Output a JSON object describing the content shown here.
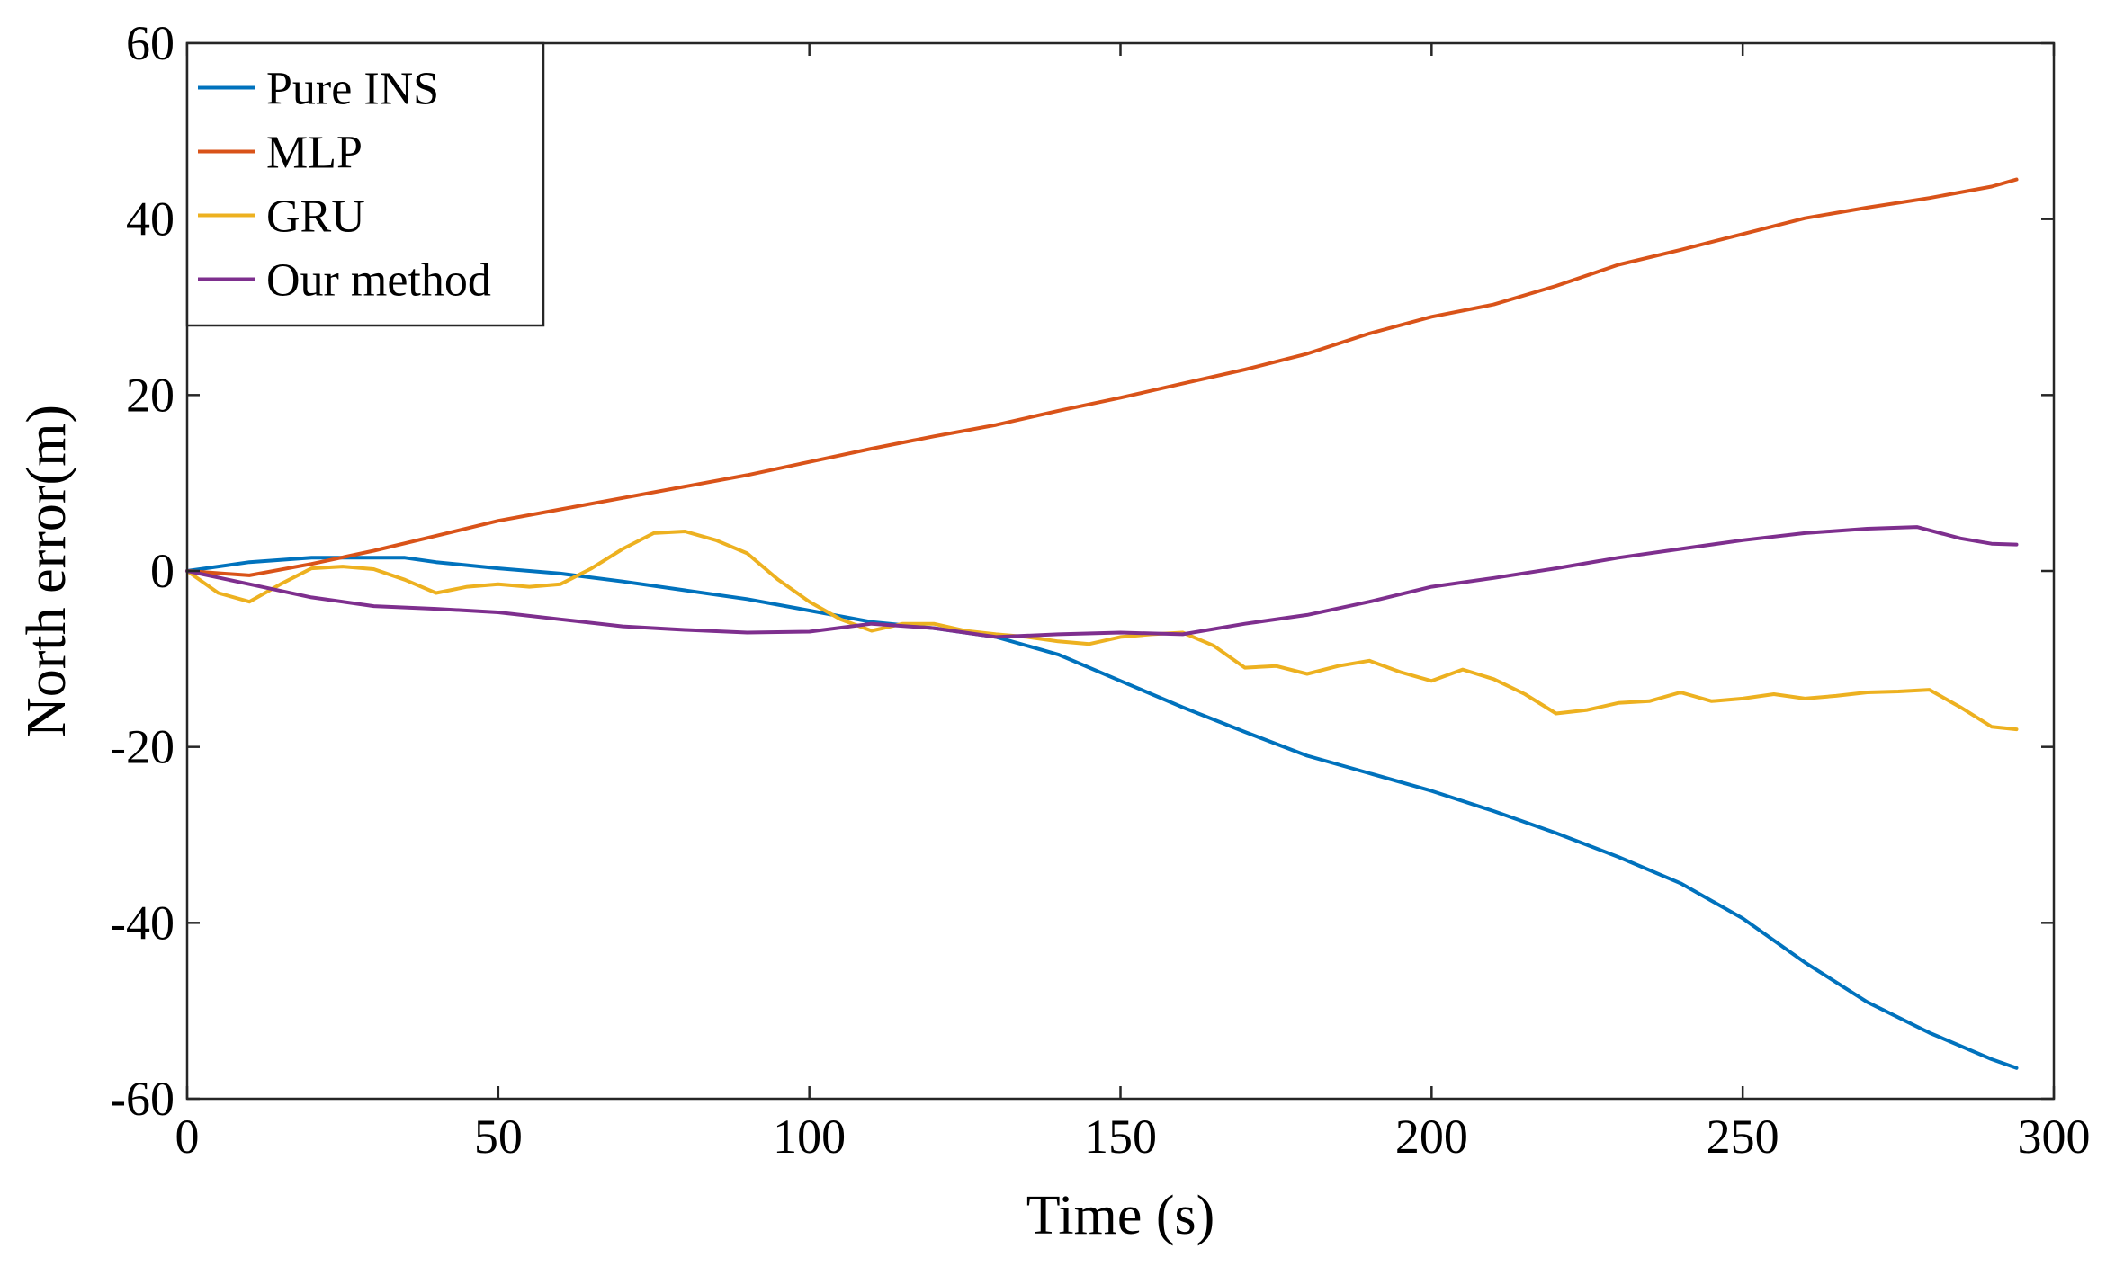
{
  "chart_data": {
    "type": "line",
    "title": "",
    "xlabel": "Time (s)",
    "ylabel": "North error(m)",
    "xlim": [
      0,
      300
    ],
    "ylim": [
      -60,
      60
    ],
    "xticks": [
      0,
      50,
      100,
      150,
      200,
      250,
      300
    ],
    "yticks": [
      -60,
      -40,
      -20,
      0,
      20,
      40,
      60
    ],
    "grid": false,
    "legend_position": "top-left",
    "series": [
      {
        "name": "Pure INS",
        "color": "#0072BD",
        "x": [
          0,
          10,
          20,
          30,
          35,
          40,
          50,
          60,
          70,
          80,
          90,
          100,
          110,
          120,
          130,
          140,
          150,
          160,
          170,
          180,
          190,
          200,
          210,
          220,
          230,
          240,
          250,
          260,
          270,
          280,
          290,
          294
        ],
        "y": [
          0,
          1.0,
          1.5,
          1.5,
          1.5,
          1.0,
          0.3,
          -0.3,
          -1.2,
          -2.2,
          -3.2,
          -4.5,
          -5.8,
          -6.5,
          -7.5,
          -9.5,
          -12.5,
          -15.5,
          -18.3,
          -21.0,
          -23.0,
          -25.0,
          -27.3,
          -29.8,
          -32.5,
          -35.5,
          -39.5,
          -44.5,
          -49.0,
          -52.5,
          -55.5,
          -56.5
        ]
      },
      {
        "name": "MLP",
        "color": "#D95319",
        "x": [
          0,
          10,
          20,
          30,
          40,
          50,
          60,
          70,
          80,
          90,
          100,
          110,
          120,
          130,
          140,
          150,
          160,
          170,
          180,
          190,
          200,
          210,
          220,
          230,
          240,
          250,
          260,
          270,
          280,
          290,
          294
        ],
        "y": [
          0,
          -0.5,
          0.8,
          2.3,
          4.0,
          5.7,
          7.0,
          8.3,
          9.6,
          10.9,
          12.4,
          13.9,
          15.3,
          16.6,
          18.2,
          19.7,
          21.3,
          22.9,
          24.7,
          27.0,
          28.9,
          30.3,
          32.4,
          34.8,
          36.5,
          38.3,
          40.1,
          41.3,
          42.4,
          43.7,
          44.5
        ]
      },
      {
        "name": "GRU",
        "color": "#EDB120",
        "x": [
          0,
          5,
          10,
          15,
          20,
          25,
          30,
          35,
          40,
          45,
          50,
          55,
          60,
          65,
          70,
          75,
          80,
          85,
          90,
          95,
          100,
          105,
          110,
          115,
          120,
          125,
          130,
          135,
          140,
          145,
          150,
          155,
          160,
          165,
          170,
          175,
          180,
          185,
          190,
          195,
          200,
          205,
          210,
          215,
          220,
          225,
          230,
          235,
          240,
          245,
          250,
          255,
          260,
          265,
          270,
          275,
          280,
          285,
          290,
          294
        ],
        "y": [
          0,
          -2.5,
          -3.5,
          -1.5,
          0.3,
          0.5,
          0.2,
          -1.0,
          -2.5,
          -1.8,
          -1.5,
          -1.8,
          -1.5,
          0.3,
          2.5,
          4.3,
          4.5,
          3.5,
          2.0,
          -1.0,
          -3.5,
          -5.5,
          -6.8,
          -6.0,
          -6.0,
          -6.8,
          -7.2,
          -7.5,
          -8.0,
          -8.3,
          -7.5,
          -7.2,
          -7.0,
          -8.5,
          -11.0,
          -10.8,
          -11.7,
          -10.8,
          -10.2,
          -11.5,
          -12.5,
          -11.2,
          -12.3,
          -14.0,
          -16.2,
          -15.8,
          -15.0,
          -14.8,
          -13.8,
          -14.8,
          -14.5,
          -14.0,
          -14.5,
          -14.2,
          -13.8,
          -13.7,
          -13.5,
          -15.5,
          -17.7,
          -18.0
        ]
      },
      {
        "name": "Our method",
        "color": "#7E2F8E",
        "x": [
          0,
          10,
          20,
          30,
          40,
          50,
          60,
          70,
          80,
          90,
          100,
          110,
          120,
          130,
          140,
          150,
          160,
          170,
          180,
          190,
          200,
          210,
          220,
          230,
          240,
          250,
          260,
          270,
          278,
          285,
          290,
          294
        ],
        "y": [
          0,
          -1.5,
          -3.0,
          -4.0,
          -4.3,
          -4.7,
          -5.5,
          -6.3,
          -6.7,
          -7.0,
          -6.9,
          -6.0,
          -6.5,
          -7.5,
          -7.2,
          -7.0,
          -7.2,
          -6.0,
          -5.0,
          -3.5,
          -1.8,
          -0.8,
          0.3,
          1.5,
          2.5,
          3.5,
          4.3,
          4.8,
          5.0,
          3.7,
          3.1,
          3.0
        ]
      }
    ]
  }
}
